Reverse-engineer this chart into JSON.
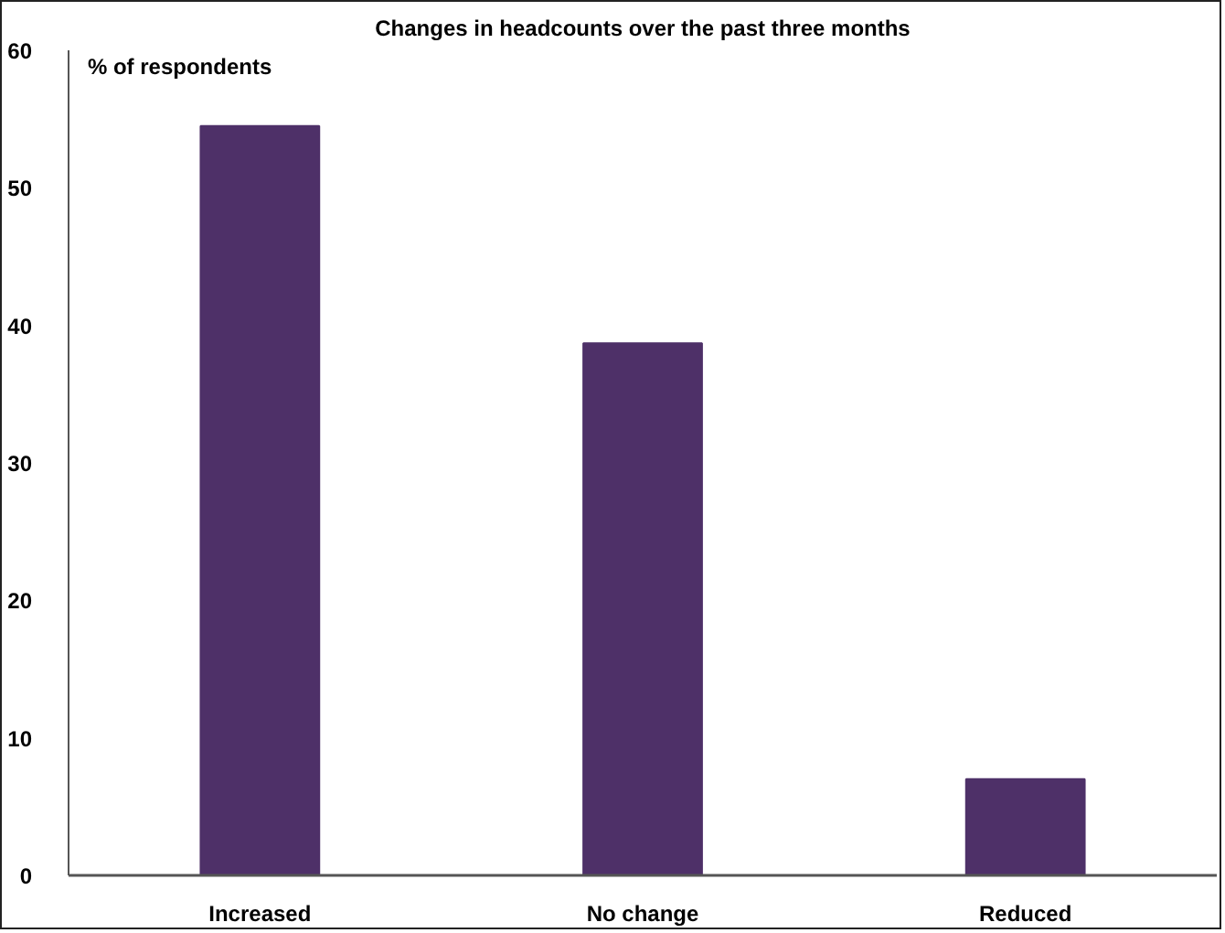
{
  "chart_data": {
    "type": "bar",
    "title": "Changes in headcounts over the past three months",
    "ylabel": "% of respondents",
    "categories": [
      "Increased",
      "No change",
      "Reduced"
    ],
    "values": [
      54.5,
      38.7,
      7
    ],
    "color": "#4e3068",
    "ylim": [
      0,
      60
    ],
    "yticks": [
      0,
      10,
      20,
      30,
      40,
      50,
      60
    ],
    "grid": false
  }
}
